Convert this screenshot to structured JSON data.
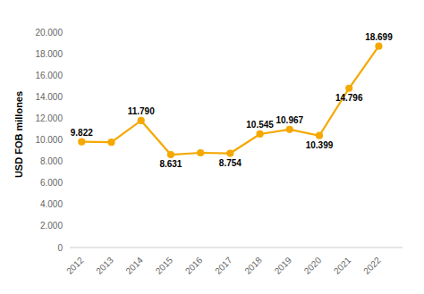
{
  "chart_data": {
    "type": "line",
    "x": [
      2012,
      2013,
      2014,
      2015,
      2016,
      2017,
      2018,
      2019,
      2020,
      2021,
      2022
    ],
    "values": [
      9822,
      9780,
      11790,
      8631,
      8800,
      8754,
      10545,
      10967,
      10399,
      14796,
      18699
    ],
    "value_labels": [
      "9.822",
      null,
      "11.790",
      "8.631",
      null,
      "8.754",
      "10.545",
      "10.967",
      "10.399",
      "14.796",
      "18.699"
    ],
    "data_labels": true,
    "color": "#F5A800",
    "marker": "circle",
    "ylabel": "USD FOB millones",
    "xlim": [
      2011.6,
      2022.8
    ],
    "xticks": [
      2012,
      2013,
      2014,
      2015,
      2016,
      2017,
      2018,
      2019,
      2020,
      2021,
      2022
    ],
    "ylim": [
      0,
      21000
    ],
    "yticks": [
      0,
      {
        "value": 2000,
        "label": "2.000"
      },
      {
        "value": 4000,
        "label": "4.000"
      },
      {
        "value": 6000,
        "label": "6.000"
      },
      {
        "value": 8000,
        "label": "8.000"
      },
      {
        "value": 10000,
        "label": "10.000"
      },
      {
        "value": 12000,
        "label": "12.000"
      },
      {
        "value": 14000,
        "label": "14.000"
      },
      {
        "value": 16000,
        "label": "16.000"
      },
      {
        "value": 18000,
        "label": "18.000"
      },
      {
        "value": 20000,
        "label": "20.000"
      }
    ],
    "grid": false
  }
}
